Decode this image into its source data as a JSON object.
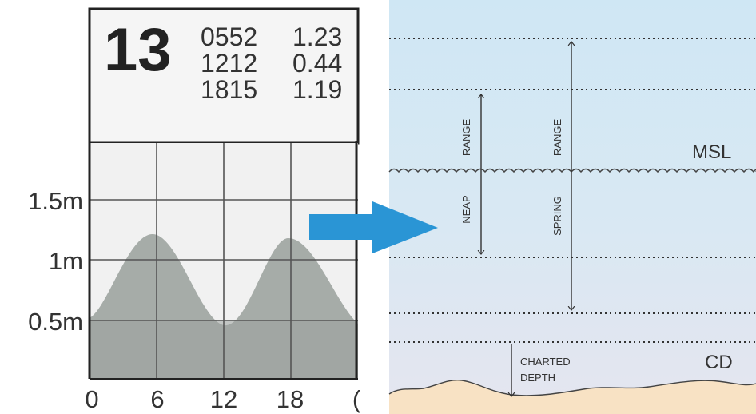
{
  "tide_table": {
    "day": "13",
    "entries": [
      {
        "time": "0552",
        "height": "1.23"
      },
      {
        "time": "1212",
        "height": "0.44"
      },
      {
        "time": "1815",
        "height": "1.19"
      }
    ]
  },
  "tide_chart": {
    "y_ticks": [
      "1.5m",
      "1m",
      "0.5m"
    ],
    "x_ticks": [
      "0",
      "6",
      "12",
      "18",
      "("
    ]
  },
  "tide_levels": {
    "labels": {
      "msl": "MSL",
      "cd": "CD",
      "neap_range": [
        "NEAP",
        "RANGE"
      ],
      "spring_range": [
        "SPRING",
        "RANGE"
      ],
      "charted_depth": [
        "CHARTED",
        "DEPTH"
      ]
    }
  },
  "colors": {
    "water_top": "#d3e9f5",
    "water_bottom": "#e6e6f0",
    "seabed": "#f8e2c4",
    "tide_fill": "#a6aca8",
    "arrow": "#2a95d5"
  },
  "icons": {
    "transition_arrow": "right-arrow-icon"
  }
}
